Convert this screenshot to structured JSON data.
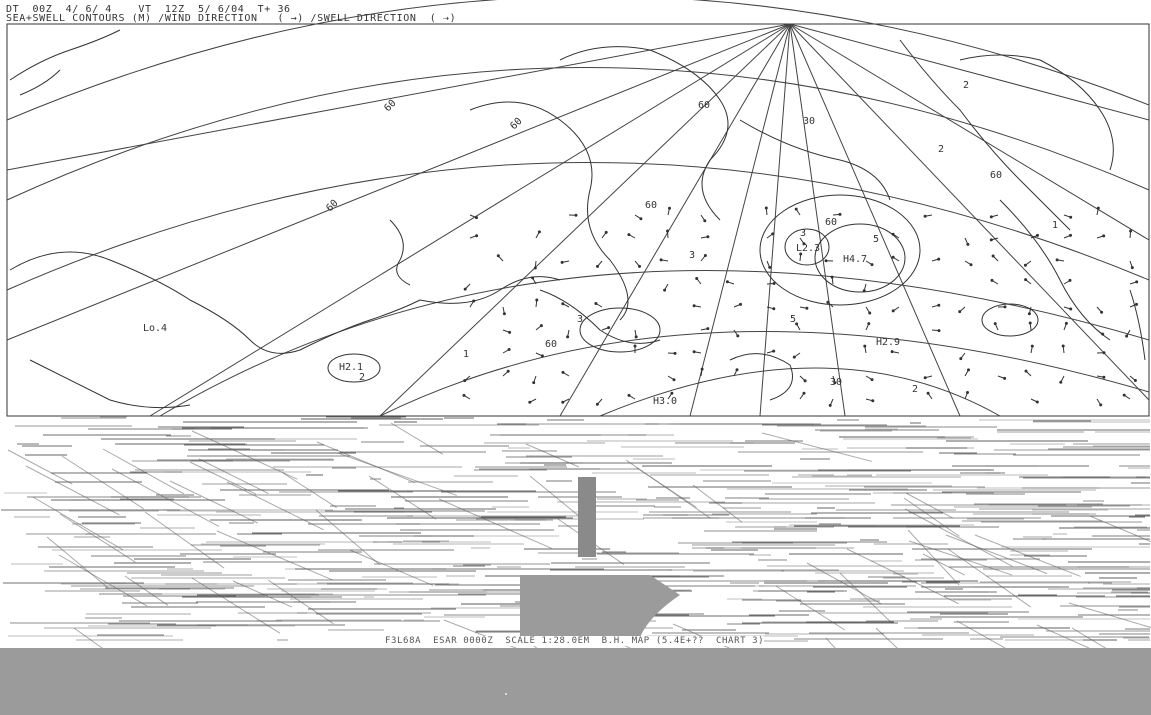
{
  "header": {
    "line1": "DT  00Z  4/ 6/ 4    VT  12Z  5/ 6/04  T+ 36",
    "line2": "SEA+SWELL CONTOURS (M) /WIND DIRECTION   ( →) /SWELL DIRECTION  ( ⇢)"
  },
  "map": {
    "contour_labels": [
      "60",
      "60",
      "60",
      "60",
      "60",
      "60",
      "60",
      "60",
      "30",
      "30",
      "1",
      "1",
      "2",
      "2",
      "3",
      "3",
      "3",
      "5",
      "5",
      "2",
      "2"
    ],
    "pressure_labels": [
      "Lo.4",
      "H2.1",
      "L2.3",
      "H4.7",
      "H2.9",
      "H3.0"
    ],
    "line_color": "#333333",
    "background": "#ffffff"
  },
  "footer": {
    "text": "F3L68A  ESAR 0000Z  SCALE 1:28.0EM  B.H. MAP (5.4E+??  CHART 3)"
  },
  "colors": {
    "ink": "#333333",
    "gray_bar": "#9b9b9b"
  }
}
